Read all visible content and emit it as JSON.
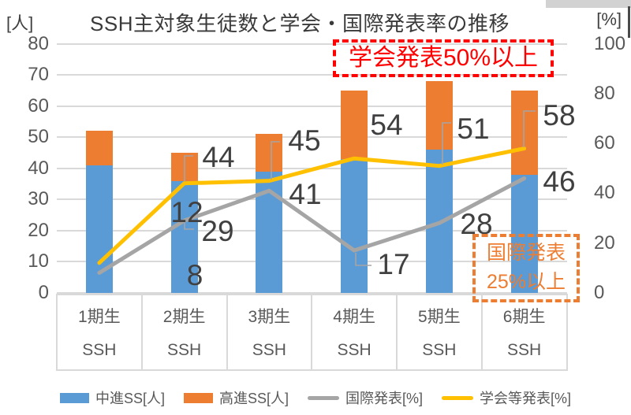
{
  "title": "SSH主対象生徒数と学会・国際発表率の推移",
  "left_axis": {
    "unit": "[人]",
    "ticks": [
      0,
      10,
      20,
      30,
      40,
      50,
      60,
      70,
      80
    ],
    "max": 80
  },
  "right_axis": {
    "unit": "[%]",
    "ticks": [
      0,
      20,
      40,
      60,
      80,
      100
    ],
    "max": 100
  },
  "chart_data": {
    "type": "combo-stacked-bar-line",
    "categories": [
      "1期生",
      "2期生",
      "3期生",
      "4期生",
      "5期生",
      "6期生"
    ],
    "category_sublabel": "SSH",
    "bar_series": [
      {
        "name": "中進SS[人]",
        "color": "#5B9BD5",
        "axis": "left",
        "values": [
          41,
          36,
          39,
          43,
          46,
          38
        ]
      },
      {
        "name": "高進SS[人]",
        "color": "#ED7D31",
        "axis": "left",
        "stacked": true,
        "values": [
          11,
          9,
          12,
          22,
          22,
          27
        ]
      }
    ],
    "line_series": [
      {
        "name": "国際発表[%]",
        "color": "#A5A5A5",
        "axis": "right",
        "values": [
          8,
          29,
          41,
          17,
          28,
          46
        ]
      },
      {
        "name": "学会等発表[%]",
        "color": "#FFC000",
        "axis": "right",
        "values": [
          12,
          44,
          45,
          54,
          51,
          58
        ]
      }
    ],
    "left_ylim": [
      0,
      80
    ],
    "right_ylim": [
      0,
      100
    ],
    "grid": true,
    "legend_position": "bottom"
  },
  "annotations": {
    "conference": {
      "text": "学会発表50%以上",
      "color": "#FF0000"
    },
    "international": {
      "line1": "国際発表",
      "line2": "25%以上",
      "color": "#ED7D31"
    }
  }
}
